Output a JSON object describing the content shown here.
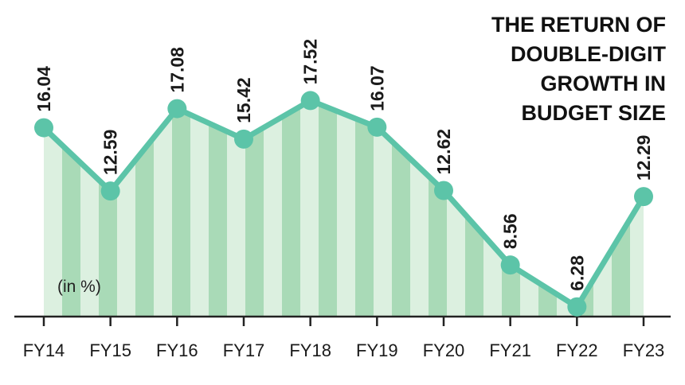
{
  "chart_data": {
    "type": "line",
    "title": [
      "THE RETURN OF",
      "DOUBLE-DIGIT",
      "GROWTH IN",
      "BUDGET SIZE"
    ],
    "annotation": "(in %)",
    "categories": [
      "FY14",
      "FY15",
      "FY16",
      "FY17",
      "FY18",
      "FY19",
      "FY20",
      "FY21",
      "FY22",
      "FY23"
    ],
    "values": [
      16.04,
      12.59,
      17.08,
      15.42,
      17.52,
      16.07,
      12.62,
      8.56,
      6.28,
      12.29
    ],
    "color": "#5cc4a8",
    "ylim": [
      5.75,
      23
    ]
  }
}
